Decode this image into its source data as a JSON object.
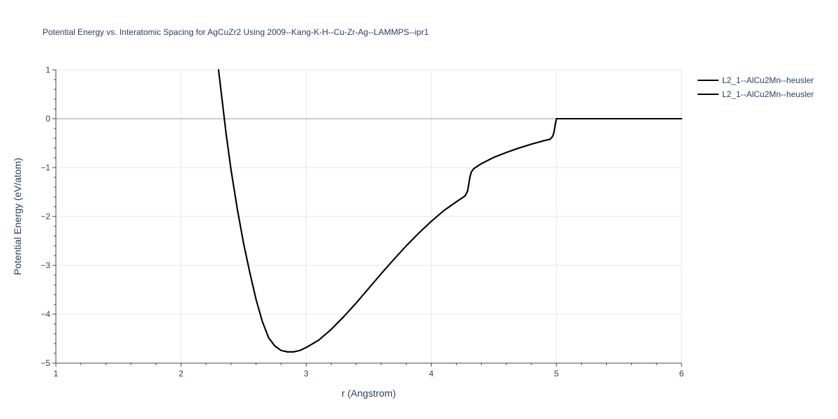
{
  "chart_data": {
    "type": "line",
    "title": "Potential Energy vs. Interatomic Spacing for AgCuZr2 Using 2009--Kang-K-H--Cu-Zr-Ag--LAMMPS--ipr1",
    "xlabel": "r (Angstrom)",
    "ylabel": "Potential Energy (eV/atom)",
    "xlim": [
      1,
      6
    ],
    "ylim": [
      -5,
      1
    ],
    "x_ticks": [
      1,
      2,
      3,
      4,
      5,
      6
    ],
    "x_tick_labels": [
      "1",
      "2",
      "3",
      "4",
      "5",
      "6"
    ],
    "y_ticks": [
      1,
      0,
      -1,
      -2,
      -3,
      -4,
      -5
    ],
    "y_tick_labels": [
      "1",
      "0",
      "−1",
      "−2",
      "−3",
      "−4",
      "−5"
    ],
    "grid": true,
    "legend_position": "top-right",
    "series": [
      {
        "name": "L2_1--AlCu2Mn--heusler",
        "color": "#000000",
        "x": [
          2.3,
          2.33,
          2.36,
          2.4,
          2.45,
          2.5,
          2.55,
          2.6,
          2.65,
          2.7,
          2.75,
          2.8,
          2.85,
          2.9,
          2.95,
          3.0,
          3.1,
          3.2,
          3.3,
          3.4,
          3.5,
          3.6,
          3.7,
          3.8,
          3.9,
          4.0,
          4.1,
          4.2,
          4.27,
          4.29,
          4.3,
          4.31,
          4.32,
          4.34,
          4.4,
          4.5,
          4.6,
          4.7,
          4.8,
          4.9,
          4.95,
          4.97,
          4.98,
          4.99,
          5.0,
          5.5,
          6.0
        ],
        "y": [
          1.0,
          0.35,
          -0.3,
          -1.05,
          -1.85,
          -2.55,
          -3.15,
          -3.7,
          -4.15,
          -4.48,
          -4.65,
          -4.74,
          -4.77,
          -4.77,
          -4.74,
          -4.68,
          -4.53,
          -4.31,
          -4.05,
          -3.77,
          -3.47,
          -3.17,
          -2.88,
          -2.6,
          -2.34,
          -2.1,
          -1.88,
          -1.7,
          -1.58,
          -1.48,
          -1.33,
          -1.18,
          -1.09,
          -1.02,
          -0.92,
          -0.79,
          -0.69,
          -0.6,
          -0.52,
          -0.45,
          -0.42,
          -0.36,
          -0.28,
          -0.13,
          0.0,
          0.0,
          0.0
        ]
      },
      {
        "name": "L2_1--AlCu2Mn--heusler",
        "color": "#000000",
        "x": [
          2.3,
          2.33,
          2.36,
          2.4,
          2.45,
          2.5,
          2.55,
          2.6,
          2.65,
          2.7,
          2.75,
          2.8,
          2.85,
          2.9,
          2.95,
          3.0,
          3.1,
          3.2,
          3.3,
          3.4,
          3.5,
          3.6,
          3.7,
          3.8,
          3.9,
          4.0,
          4.1,
          4.2,
          4.27,
          4.29,
          4.3,
          4.31,
          4.32,
          4.34,
          4.4,
          4.5,
          4.6,
          4.7,
          4.8,
          4.9,
          4.95,
          4.97,
          4.98,
          4.99,
          5.0,
          5.5,
          6.0
        ],
        "y": [
          1.0,
          0.35,
          -0.3,
          -1.05,
          -1.85,
          -2.55,
          -3.15,
          -3.7,
          -4.15,
          -4.48,
          -4.65,
          -4.74,
          -4.77,
          -4.77,
          -4.74,
          -4.68,
          -4.53,
          -4.31,
          -4.05,
          -3.77,
          -3.47,
          -3.17,
          -2.88,
          -2.6,
          -2.34,
          -2.1,
          -1.88,
          -1.7,
          -1.58,
          -1.48,
          -1.33,
          -1.18,
          -1.09,
          -1.02,
          -0.92,
          -0.79,
          -0.69,
          -0.6,
          -0.52,
          -0.45,
          -0.42,
          -0.36,
          -0.28,
          -0.13,
          0.0,
          0.0,
          0.0
        ]
      }
    ]
  }
}
